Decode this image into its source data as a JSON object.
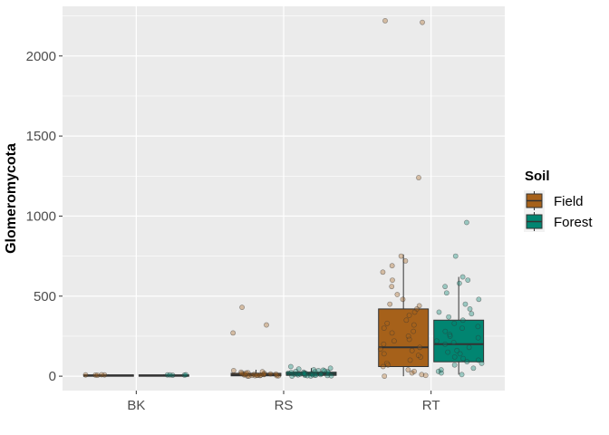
{
  "chart_data": {
    "type": "box",
    "ylabel": "Glomeromycota",
    "xlabel": "",
    "categories": [
      "BK",
      "RS",
      "RT"
    ],
    "ylim": [
      -90,
      2310
    ],
    "yticks": [
      0,
      500,
      1000,
      1500,
      2000
    ],
    "grid": true,
    "legend": {
      "title": "Soil",
      "position": "right"
    },
    "series": [
      {
        "name": "Field",
        "color": "#A6611A",
        "boxes": [
          {
            "category": "BK",
            "min": 0,
            "q1": 2,
            "median": 5,
            "q3": 8,
            "max": 12,
            "points": [
              8,
              8,
              9,
              7,
              6
            ]
          },
          {
            "category": "RS",
            "min": 0,
            "q1": 2,
            "median": 8,
            "q3": 18,
            "max": 40,
            "points": [
              430,
              320,
              270,
              35,
              22,
              18,
              15,
              12,
              10,
              8,
              6,
              5,
              3,
              2,
              1,
              0,
              25,
              14,
              9,
              4,
              20,
              11,
              7,
              16,
              3,
              28,
              13,
              5
            ]
          },
          {
            "category": "RT",
            "min": 0,
            "q1": 60,
            "median": 180,
            "q3": 420,
            "max": 760,
            "points": [
              2220,
              2210,
              1240,
              750,
              720,
              690,
              650,
              600,
              560,
              510,
              480,
              450,
              420,
              380,
              350,
              320,
              300,
              280,
              250,
              220,
              200,
              180,
              160,
              140,
              120,
              100,
              80,
              60,
              40,
              20,
              10,
              5,
              0,
              30,
              70,
              130,
              170,
              230,
              270,
              330,
              400,
              440
            ]
          }
        ]
      },
      {
        "name": "Forest",
        "color": "#018571",
        "boxes": [
          {
            "category": "BK",
            "min": 0,
            "q1": 2,
            "median": 5,
            "q3": 8,
            "max": 12,
            "points": [
              8,
              7,
              9,
              6,
              8
            ]
          },
          {
            "category": "RS",
            "min": 0,
            "q1": 5,
            "median": 15,
            "q3": 25,
            "max": 50,
            "points": [
              60,
              50,
              45,
              40,
              35,
              30,
              28,
              25,
              22,
              20,
              18,
              16,
              15,
              14,
              12,
              10,
              8,
              6,
              5,
              4,
              3,
              2,
              1,
              0,
              33,
              27,
              19,
              11,
              9,
              7,
              24,
              38,
              13,
              17
            ]
          },
          {
            "category": "RT",
            "min": 10,
            "q1": 90,
            "median": 200,
            "q3": 350,
            "max": 620,
            "points": [
              960,
              750,
              620,
              600,
              580,
              560,
              520,
              480,
              450,
              420,
              400,
              370,
              350,
              330,
              300,
              280,
              260,
              240,
              220,
              200,
              180,
              160,
              140,
              120,
              100,
              90,
              70,
              50,
              30,
              20,
              10,
              40,
              80,
              110,
              150,
              210,
              250,
              310,
              390
            ]
          }
        ]
      }
    ]
  }
}
